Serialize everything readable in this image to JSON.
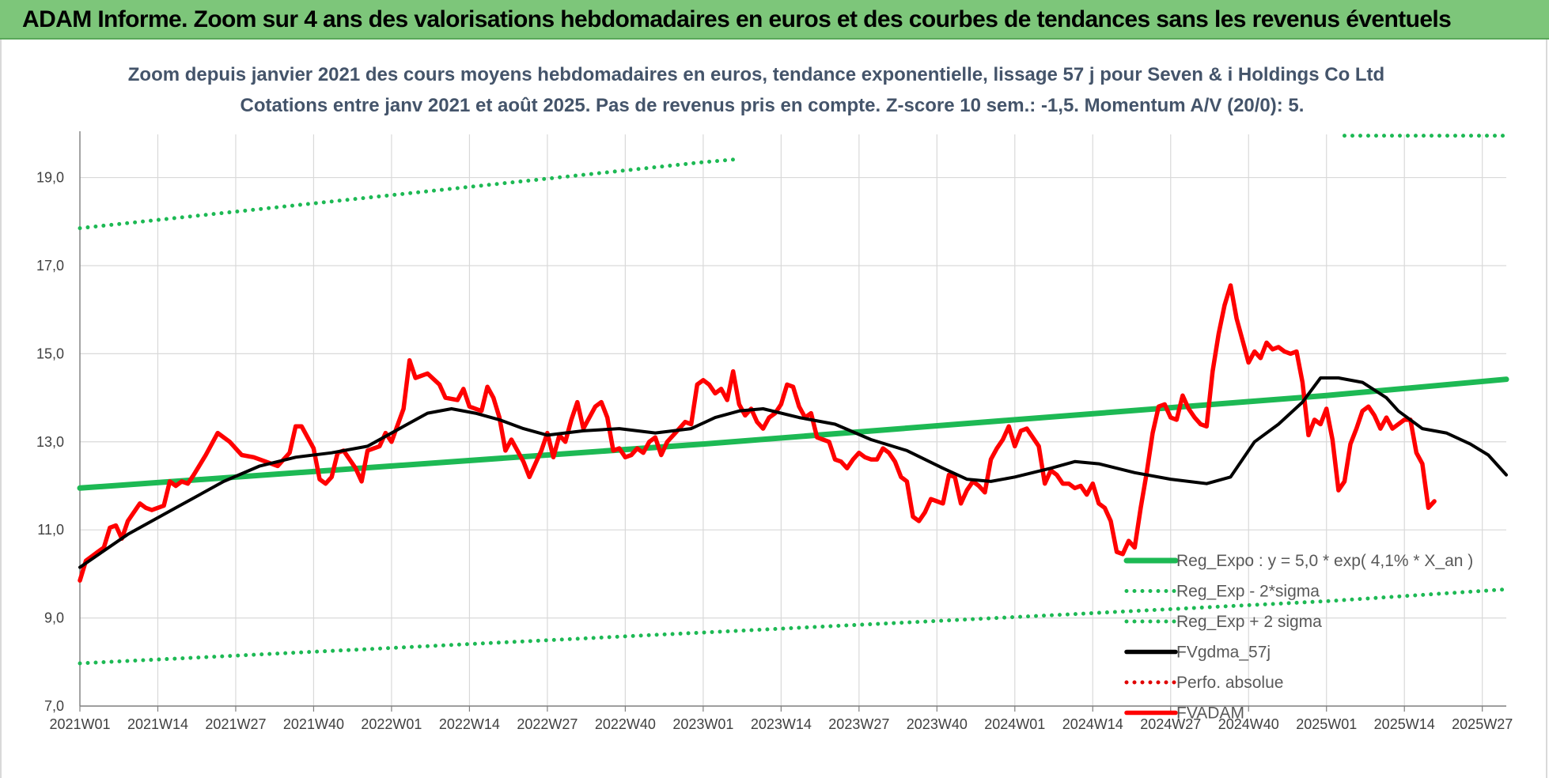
{
  "banner": {
    "text": "ADAM Informe. Zoom sur 4 ans des valorisations hebdomadaires en euros et des courbes de tendances sans les revenus éventuels"
  },
  "chart_data": {
    "type": "line",
    "title": "Zoom depuis janvier 2021 des cours moyens hebdomadaires en euros, tendance exponentielle, lissage 57 j pour Seven & i Holdings Co Ltd",
    "subtitle": "Cotations entre janv 2021 et août 2025.  Pas de revenus pris en compte. Z-score 10 sem.: -1,5. Momentum A/V (20/0): 5.",
    "xlabel": "",
    "ylabel": "",
    "ylim": [
      7,
      19.8
    ],
    "yticks": [
      "7,0",
      "9,0",
      "11,0",
      "13,0",
      "15,0",
      "17,0",
      "19,0"
    ],
    "ytick_values": [
      7,
      9,
      11,
      13,
      15,
      17,
      19
    ],
    "xticks": [
      "2021W01",
      "2021W14",
      "2021W27",
      "2021W40",
      "2022W01",
      "2022W14",
      "2022W27",
      "2022W40",
      "2023W01",
      "2023W14",
      "2023W27",
      "2023W40",
      "2024W01",
      "2024W14",
      "2024W27",
      "2024W40",
      "2025W01",
      "2025W14",
      "2025W27"
    ],
    "xtick_weeks": [
      0,
      13,
      26,
      39,
      52,
      65,
      78,
      91,
      104,
      117,
      130,
      143,
      156,
      169,
      182,
      195,
      208,
      221,
      234
    ],
    "xmax_week": 238,
    "grid": true,
    "legend_position": "bottom-right",
    "series": [
      {
        "name": "Reg_Expo : y = 5,0 * exp( 4,1% *  X_an )",
        "style": "solid",
        "color": "#1db954",
        "points": [
          [
            0,
            11.95
          ],
          [
            52,
            12.45
          ],
          [
            104,
            12.95
          ],
          [
            156,
            13.5
          ],
          [
            208,
            14.05
          ],
          [
            238,
            14.42
          ]
        ]
      },
      {
        "name": "Reg_Exp - 2*sigma",
        "style": "dotted",
        "color": "#1db954",
        "points": [
          [
            0,
            7.97
          ],
          [
            52,
            8.32
          ],
          [
            104,
            8.67
          ],
          [
            156,
            9.02
          ],
          [
            208,
            9.38
          ],
          [
            238,
            9.65
          ]
        ]
      },
      {
        "name": "Reg_Exp + 2 sigma",
        "style": "dotted",
        "color": "#1db954",
        "points": [
          [
            0,
            17.85
          ],
          [
            52,
            18.6
          ],
          [
            104,
            19.35
          ],
          [
            110,
            19.42
          ]
        ],
        "points_b": [
          [
            211,
            19.95
          ],
          [
            238,
            19.95
          ]
        ]
      },
      {
        "name": "FVgdma_57j",
        "style": "solid",
        "color": "#000000",
        "points": [
          [
            0,
            10.15
          ],
          [
            8,
            10.9
          ],
          [
            16,
            11.5
          ],
          [
            24,
            12.1
          ],
          [
            30,
            12.45
          ],
          [
            36,
            12.65
          ],
          [
            42,
            12.75
          ],
          [
            48,
            12.9
          ],
          [
            54,
            13.35
          ],
          [
            58,
            13.65
          ],
          [
            62,
            13.75
          ],
          [
            66,
            13.65
          ],
          [
            70,
            13.5
          ],
          [
            74,
            13.3
          ],
          [
            78,
            13.15
          ],
          [
            84,
            13.25
          ],
          [
            90,
            13.3
          ],
          [
            96,
            13.2
          ],
          [
            102,
            13.3
          ],
          [
            106,
            13.55
          ],
          [
            110,
            13.7
          ],
          [
            114,
            13.75
          ],
          [
            120,
            13.55
          ],
          [
            126,
            13.4
          ],
          [
            132,
            13.05
          ],
          [
            138,
            12.8
          ],
          [
            144,
            12.4
          ],
          [
            148,
            12.15
          ],
          [
            152,
            12.1
          ],
          [
            156,
            12.2
          ],
          [
            162,
            12.4
          ],
          [
            166,
            12.55
          ],
          [
            170,
            12.5
          ],
          [
            176,
            12.3
          ],
          [
            182,
            12.15
          ],
          [
            188,
            12.05
          ],
          [
            192,
            12.2
          ],
          [
            196,
            13.0
          ],
          [
            200,
            13.4
          ],
          [
            204,
            13.9
          ],
          [
            207,
            14.45
          ],
          [
            210,
            14.45
          ],
          [
            214,
            14.35
          ],
          [
            218,
            14.0
          ],
          [
            220,
            13.7
          ],
          [
            224,
            13.3
          ],
          [
            228,
            13.2
          ],
          [
            232,
            12.95
          ],
          [
            235,
            12.7
          ],
          [
            238,
            12.25
          ]
        ]
      },
      {
        "name": "Perfo. absolue",
        "style": "dotted",
        "color": "#e00000",
        "points": []
      },
      {
        "name": "FVADAM",
        "style": "solid",
        "color": "#ff0000",
        "points": [
          [
            0,
            9.85
          ],
          [
            1,
            10.3
          ],
          [
            2,
            10.4
          ],
          [
            3,
            10.5
          ],
          [
            4,
            10.6
          ],
          [
            5,
            11.05
          ],
          [
            6,
            11.1
          ],
          [
            7,
            10.8
          ],
          [
            8,
            11.2
          ],
          [
            10,
            11.6
          ],
          [
            11,
            11.5
          ],
          [
            12,
            11.45
          ],
          [
            14,
            11.55
          ],
          [
            15,
            12.1
          ],
          [
            16,
            12.0
          ],
          [
            17,
            12.1
          ],
          [
            18,
            12.05
          ],
          [
            19,
            12.25
          ],
          [
            21,
            12.7
          ],
          [
            23,
            13.2
          ],
          [
            25,
            13.0
          ],
          [
            27,
            12.7
          ],
          [
            29,
            12.65
          ],
          [
            31,
            12.55
          ],
          [
            33,
            12.45
          ],
          [
            35,
            12.75
          ],
          [
            36,
            13.35
          ],
          [
            37,
            13.35
          ],
          [
            39,
            12.85
          ],
          [
            40,
            12.15
          ],
          [
            41,
            12.05
          ],
          [
            42,
            12.2
          ],
          [
            43,
            12.75
          ],
          [
            44,
            12.8
          ],
          [
            46,
            12.4
          ],
          [
            47,
            12.1
          ],
          [
            48,
            12.8
          ],
          [
            50,
            12.9
          ],
          [
            51,
            13.2
          ],
          [
            52,
            13.0
          ],
          [
            54,
            13.75
          ],
          [
            55,
            14.85
          ],
          [
            56,
            14.45
          ],
          [
            58,
            14.55
          ],
          [
            60,
            14.3
          ],
          [
            61,
            14.0
          ],
          [
            63,
            13.95
          ],
          [
            64,
            14.2
          ],
          [
            65,
            13.8
          ],
          [
            67,
            13.7
          ],
          [
            68,
            14.25
          ],
          [
            69,
            14.0
          ],
          [
            70,
            13.55
          ],
          [
            71,
            12.8
          ],
          [
            72,
            13.05
          ],
          [
            73,
            12.8
          ],
          [
            74,
            12.55
          ],
          [
            75,
            12.2
          ],
          [
            76,
            12.5
          ],
          [
            77,
            12.8
          ],
          [
            78,
            13.2
          ],
          [
            79,
            12.65
          ],
          [
            80,
            13.15
          ],
          [
            81,
            13.0
          ],
          [
            82,
            13.5
          ],
          [
            83,
            13.9
          ],
          [
            84,
            13.3
          ],
          [
            86,
            13.8
          ],
          [
            87,
            13.9
          ],
          [
            88,
            13.55
          ],
          [
            89,
            12.8
          ],
          [
            90,
            12.85
          ],
          [
            91,
            12.65
          ],
          [
            92,
            12.7
          ],
          [
            93,
            12.85
          ],
          [
            94,
            12.75
          ],
          [
            95,
            13.0
          ],
          [
            96,
            13.1
          ],
          [
            97,
            12.7
          ],
          [
            98,
            13.0
          ],
          [
            100,
            13.3
          ],
          [
            101,
            13.45
          ],
          [
            102,
            13.4
          ],
          [
            103,
            14.3
          ],
          [
            104,
            14.4
          ],
          [
            105,
            14.3
          ],
          [
            106,
            14.1
          ],
          [
            107,
            14.2
          ],
          [
            108,
            13.95
          ],
          [
            109,
            14.6
          ],
          [
            110,
            13.85
          ],
          [
            111,
            13.6
          ],
          [
            112,
            13.75
          ],
          [
            113,
            13.45
          ],
          [
            114,
            13.3
          ],
          [
            115,
            13.55
          ],
          [
            116,
            13.65
          ],
          [
            117,
            13.85
          ],
          [
            118,
            14.3
          ],
          [
            119,
            14.25
          ],
          [
            120,
            13.8
          ],
          [
            121,
            13.55
          ],
          [
            122,
            13.65
          ],
          [
            123,
            13.1
          ],
          [
            124,
            13.05
          ],
          [
            125,
            13.0
          ],
          [
            126,
            12.6
          ],
          [
            127,
            12.55
          ],
          [
            128,
            12.4
          ],
          [
            129,
            12.6
          ],
          [
            130,
            12.75
          ],
          [
            131,
            12.65
          ],
          [
            132,
            12.6
          ],
          [
            133,
            12.6
          ],
          [
            134,
            12.85
          ],
          [
            135,
            12.75
          ],
          [
            136,
            12.55
          ],
          [
            137,
            12.2
          ],
          [
            138,
            12.1
          ],
          [
            139,
            11.3
          ],
          [
            140,
            11.2
          ],
          [
            141,
            11.4
          ],
          [
            142,
            11.7
          ],
          [
            143,
            11.65
          ],
          [
            144,
            11.6
          ],
          [
            145,
            12.25
          ],
          [
            146,
            12.2
          ],
          [
            147,
            11.6
          ],
          [
            148,
            11.9
          ],
          [
            149,
            12.1
          ],
          [
            150,
            12.0
          ],
          [
            151,
            11.85
          ],
          [
            152,
            12.6
          ],
          [
            153,
            12.85
          ],
          [
            154,
            13.05
          ],
          [
            155,
            13.35
          ],
          [
            156,
            12.9
          ],
          [
            157,
            13.25
          ],
          [
            158,
            13.3
          ],
          [
            159,
            13.1
          ],
          [
            160,
            12.9
          ],
          [
            161,
            12.05
          ],
          [
            162,
            12.35
          ],
          [
            163,
            12.25
          ],
          [
            164,
            12.05
          ],
          [
            165,
            12.05
          ],
          [
            166,
            11.95
          ],
          [
            167,
            12.0
          ],
          [
            168,
            11.8
          ],
          [
            169,
            12.05
          ],
          [
            170,
            11.6
          ],
          [
            171,
            11.5
          ],
          [
            172,
            11.2
          ],
          [
            173,
            10.5
          ],
          [
            174,
            10.45
          ],
          [
            175,
            10.75
          ],
          [
            176,
            10.6
          ],
          [
            177,
            11.5
          ],
          [
            178,
            12.3
          ],
          [
            179,
            13.2
          ],
          [
            180,
            13.8
          ],
          [
            181,
            13.85
          ],
          [
            182,
            13.55
          ],
          [
            183,
            13.5
          ],
          [
            184,
            14.05
          ],
          [
            185,
            13.75
          ],
          [
            186,
            13.55
          ],
          [
            187,
            13.4
          ],
          [
            188,
            13.35
          ],
          [
            189,
            14.6
          ],
          [
            190,
            15.45
          ],
          [
            191,
            16.1
          ],
          [
            192,
            16.55
          ],
          [
            193,
            15.8
          ],
          [
            194,
            15.3
          ],
          [
            195,
            14.8
          ],
          [
            196,
            15.05
          ],
          [
            197,
            14.9
          ],
          [
            198,
            15.25
          ],
          [
            199,
            15.1
          ],
          [
            200,
            15.15
          ],
          [
            201,
            15.05
          ],
          [
            202,
            15.0
          ],
          [
            203,
            15.05
          ],
          [
            204,
            14.35
          ],
          [
            205,
            13.15
          ],
          [
            206,
            13.5
          ],
          [
            207,
            13.4
          ],
          [
            208,
            13.75
          ],
          [
            209,
            13.05
          ],
          [
            210,
            11.9
          ],
          [
            211,
            12.1
          ],
          [
            212,
            12.95
          ],
          [
            213,
            13.3
          ],
          [
            214,
            13.7
          ],
          [
            215,
            13.8
          ],
          [
            216,
            13.6
          ],
          [
            217,
            13.3
          ],
          [
            218,
            13.55
          ],
          [
            219,
            13.3
          ],
          [
            220,
            13.4
          ],
          [
            221,
            13.5
          ],
          [
            222,
            13.5
          ],
          [
            223,
            12.75
          ],
          [
            224,
            12.5
          ],
          [
            225,
            11.5
          ],
          [
            226,
            11.65
          ]
        ]
      }
    ]
  }
}
